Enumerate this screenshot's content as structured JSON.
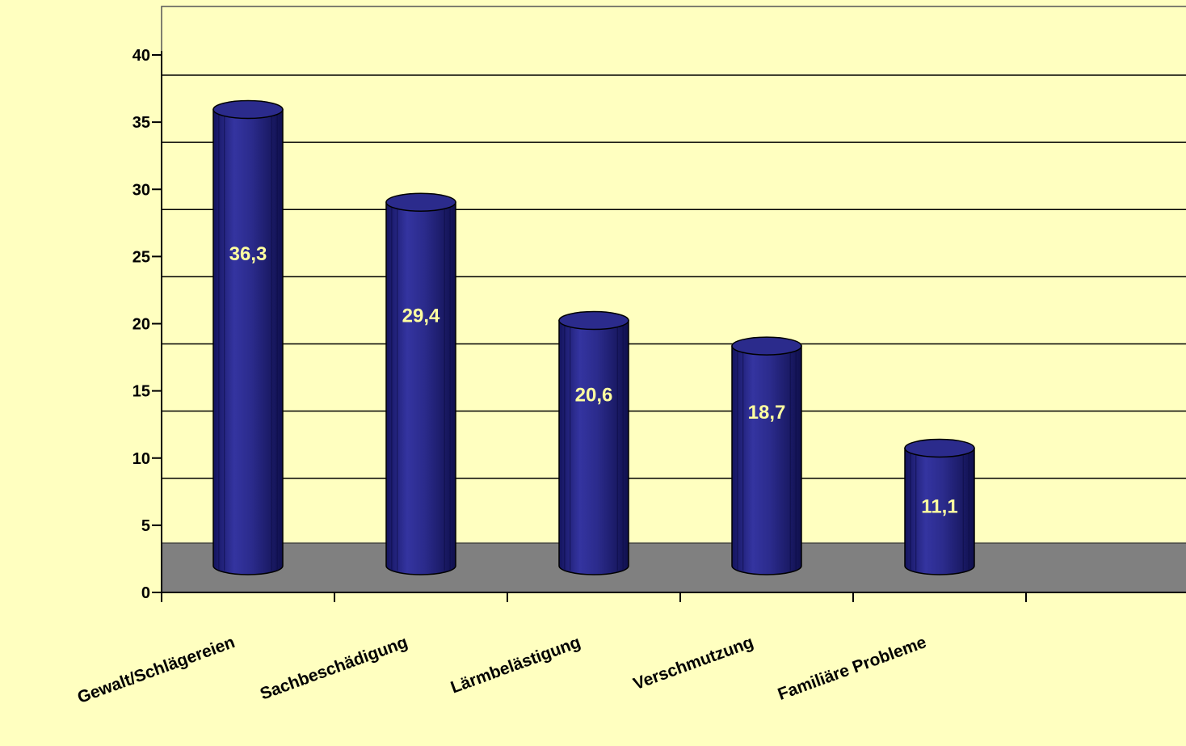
{
  "colors": {
    "background": "#ffffc0",
    "bar_fill": "#2b2b8c",
    "bar_dark": "#111155",
    "floor": "#808080",
    "grid": "#000000",
    "data_label": "#ffffa0"
  },
  "chart_data": {
    "type": "bar",
    "style": "3d-cylinder",
    "categories": [
      "Gewalt/Schlägereien",
      "Sachbeschädigung",
      "Lärmbelästigung",
      "Verschmutzung",
      "Familiäre Probleme"
    ],
    "values": [
      36.3,
      29.4,
      20.6,
      18.7,
      11.1
    ],
    "data_labels": [
      "36,3",
      "29,4",
      "20,6",
      "18,7",
      "11,1"
    ],
    "title": "",
    "xlabel": "",
    "ylabel": "",
    "ylim": [
      0,
      40
    ],
    "yticks": [
      0,
      5,
      10,
      15,
      20,
      25,
      30,
      35,
      40
    ],
    "ytick_labels": [
      "0",
      "5",
      "10",
      "15",
      "20",
      "25",
      "30",
      "35",
      "40"
    ],
    "grid": true,
    "legend": "none"
  }
}
